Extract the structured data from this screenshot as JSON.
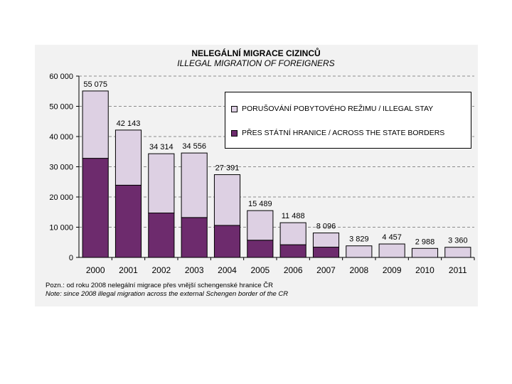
{
  "colors": {
    "illegal_stay": "#ddd0e3",
    "border_crossing": "#6d2b6d",
    "panel": "#f2f2f2",
    "grid": "#8c8c8c",
    "axis": "#000000"
  },
  "chart_data": {
    "type": "bar",
    "stacked": true,
    "title": "NELEGÁLNÍ MIGRACE CIZINCŮ",
    "subtitle": "ILLEGAL MIGRATION OF FOREIGNERS",
    "categories": [
      "2000",
      "2001",
      "2002",
      "2003",
      "2004",
      "2005",
      "2006",
      "2007",
      "2008",
      "2009",
      "2010",
      "2011"
    ],
    "series": [
      {
        "name": "PŘES STÁTNÍ HRANICE / ACROSS THE STATE BORDERS",
        "values": [
          32800,
          23900,
          14700,
          13200,
          10600,
          5700,
          4200,
          3400,
          0,
          0,
          0,
          0
        ]
      },
      {
        "name": "PORUŠOVÁNÍ POBYTOVÉHO REŽIMU / ILLEGAL STAY",
        "values": [
          22275,
          18243,
          19614,
          21356,
          16791,
          9789,
          7288,
          4696,
          3829,
          4457,
          2988,
          3360
        ]
      }
    ],
    "totals": [
      55075,
      42143,
      34314,
      34556,
      27391,
      15489,
      11488,
      8096,
      3829,
      4457,
      2988,
      3360
    ],
    "total_labels": [
      "55 075",
      "42 143",
      "34 314",
      "34 556",
      "27 391",
      "15 489",
      "11 488",
      "8 096",
      "3 829",
      "4 457",
      "2 988",
      "3 360"
    ],
    "ylim": [
      0,
      60000
    ],
    "yticks": [
      0,
      10000,
      20000,
      30000,
      40000,
      50000,
      60000
    ],
    "ytick_labels": [
      "0",
      "10 000",
      "20 000",
      "30 000",
      "40 000",
      "50 000",
      "60 000"
    ],
    "grid": true,
    "legend_position": "top-right",
    "xlabel": "",
    "ylabel": ""
  },
  "notes": {
    "line1": "Pozn.: od roku 2008 nelegální  migrace přes vnější schengenské hranice ČR",
    "line2": "Note: since 2008 illegal migration across the external Schengen border of the CR"
  }
}
